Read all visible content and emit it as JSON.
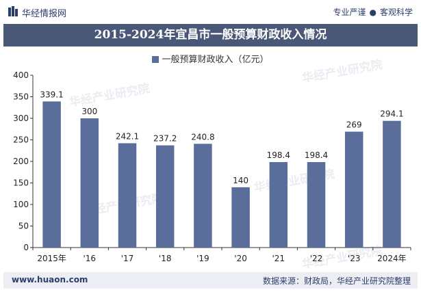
{
  "header": {
    "brand": "华经情报网",
    "tagline_left": "专业严谨",
    "tagline_right": "客观科学"
  },
  "title": "2015-2024年宜昌市一般预算财政收入情况",
  "footer": {
    "url": "www.huaon.com",
    "source": "数据来源：财政局，华经产业研究院整理"
  },
  "watermark": "华经产业研究院",
  "colors": {
    "bar": "#5a6d9b",
    "title_bg": "#4a5878",
    "brand": "#2b3d6b"
  },
  "chart_data": {
    "type": "bar",
    "title": "2015-2024年宜昌市一般预算财政收入情况",
    "categories": [
      "2015年",
      "'16",
      "'17",
      "'18",
      "'19",
      "'20",
      "'21",
      "'22",
      "'23",
      "2024年"
    ],
    "series": [
      {
        "name": "一般预算财政收入（亿元）",
        "values": [
          339.1,
          300,
          242.1,
          237.2,
          240.8,
          140,
          198.4,
          198.4,
          269,
          294.1
        ]
      }
    ],
    "value_labels": [
      "339.1",
      "300",
      "242.1",
      "237.2",
      "240.8",
      "140",
      "198.4",
      "198.4",
      "269",
      "294.1"
    ],
    "xlabel": "",
    "ylabel": "",
    "ylim": [
      0,
      400
    ],
    "yticks": [
      0,
      50,
      100,
      150,
      200,
      250,
      300,
      350,
      400
    ],
    "legend_position": "top-center",
    "grid": false
  }
}
